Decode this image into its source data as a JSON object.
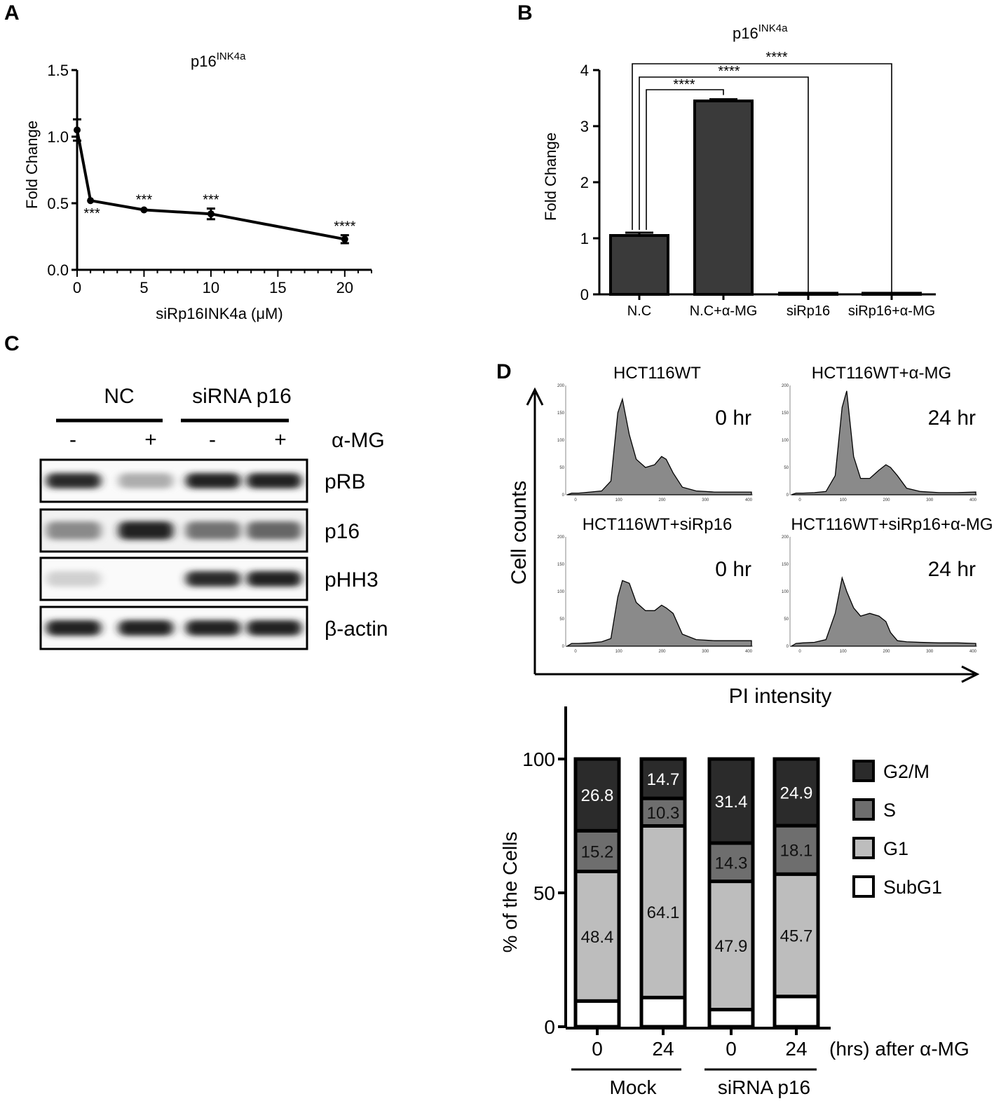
{
  "panels": {
    "A": "A",
    "B": "B",
    "C": "C",
    "D": "D"
  },
  "panel_a": {
    "title_main": "p16",
    "title_sup": "INK4a",
    "ylabel": "Fold Change",
    "xlabel": "siRp16INK4a (μM)",
    "yticks": [
      "0.0",
      "0.5",
      "1.0",
      "1.5"
    ],
    "xticks": [
      "0",
      "5",
      "10",
      "15",
      "20"
    ]
  },
  "panel_b": {
    "title_main": "p16",
    "title_sup": "INK4a",
    "ylabel": "Fold Change",
    "yticks": [
      "0",
      "1",
      "2",
      "3",
      "4"
    ]
  },
  "panel_c": {
    "groups": [
      "NC",
      "siRNA p16"
    ],
    "treatment_label": "α-MG",
    "lane_signs": [
      "-",
      "+",
      "-",
      "+"
    ],
    "blots": [
      {
        "name": "pRB",
        "intensity": [
          0.9,
          0.35,
          0.95,
          0.95
        ]
      },
      {
        "name": "p16",
        "intensity": [
          0.5,
          0.95,
          0.6,
          0.65
        ]
      },
      {
        "name": "pHH3",
        "intensity": [
          0.2,
          0.0,
          0.9,
          0.95
        ]
      },
      {
        "name": "β-actin",
        "intensity": [
          0.95,
          0.95,
          0.95,
          0.95
        ]
      }
    ]
  },
  "panel_d": {
    "ylabel": "Cell counts",
    "xlabel": "PI intensity",
    "histograms": [
      {
        "title": "HCT116WT",
        "time": "0 hr"
      },
      {
        "title": "HCT116WT+α-MG",
        "time": "24 hr"
      },
      {
        "title": "HCT116WT+siRp16",
        "time": "0 hr"
      },
      {
        "title": "HCT116WT+siRp16+α-MG",
        "time": "24 hr"
      }
    ],
    "hist_yticks": [
      "0",
      "50",
      "100",
      "150",
      "200"
    ],
    "hist_xticks": [
      "0",
      "100",
      "200",
      "300",
      "400"
    ],
    "stack_ylabel": "% of the Cells",
    "stack_xlabel_suffix": "(hrs) after α-MG",
    "group_labels": [
      "Mock",
      "siRNA p16"
    ]
  },
  "chart_data": [
    {
      "type": "line",
      "panel": "A",
      "title": "p16INK4a",
      "xlabel": "siRp16INK4a (μM)",
      "ylabel": "Fold Change",
      "xlim": [
        0,
        22
      ],
      "ylim": [
        0,
        1.5
      ],
      "x": [
        0,
        1,
        5,
        10,
        20
      ],
      "y": [
        1.05,
        0.52,
        0.45,
        0.42,
        0.23
      ],
      "error": [
        0.08,
        0.01,
        0.01,
        0.04,
        0.03
      ],
      "annotations": [
        "",
        "***",
        "***",
        "***",
        "****"
      ]
    },
    {
      "type": "bar",
      "panel": "B",
      "title": "p16INK4a",
      "ylabel": "Fold Change",
      "ylim": [
        0,
        4
      ],
      "categories": [
        "N.C",
        "N.C+α-MG",
        "siRp16",
        "siRp16+α-MG"
      ],
      "values": [
        1.05,
        3.45,
        0.02,
        0.02
      ],
      "error": [
        0.05,
        0.03,
        0.0,
        0.0
      ],
      "significance": [
        {
          "from": "N.C",
          "to": "N.C+α-MG",
          "label": "****"
        },
        {
          "from": "N.C",
          "to": "siRp16",
          "label": "****"
        },
        {
          "from": "N.C",
          "to": "siRp16+α-MG",
          "label": "****"
        }
      ]
    },
    {
      "type": "area",
      "panel": "D",
      "xlim": [
        0,
        400
      ],
      "ylim": [
        0,
        200
      ],
      "x": [
        0,
        10,
        25,
        50,
        75,
        95,
        110,
        120,
        135,
        150,
        170,
        190,
        205,
        215,
        230,
        250,
        280,
        320,
        360,
        400
      ],
      "series": [
        {
          "values": [
            0,
            3,
            3,
            5,
            7,
            25,
            150,
            175,
            110,
            65,
            50,
            55,
            70,
            65,
            40,
            14,
            7,
            5,
            5,
            5
          ]
        },
        {
          "values": [
            0,
            3,
            3,
            4,
            6,
            35,
            160,
            190,
            70,
            30,
            30,
            45,
            55,
            50,
            35,
            12,
            6,
            4,
            4,
            5
          ]
        },
        {
          "values": [
            0,
            5,
            5,
            6,
            8,
            14,
            90,
            120,
            115,
            80,
            65,
            65,
            75,
            70,
            60,
            22,
            12,
            10,
            10,
            10
          ]
        },
        {
          "values": [
            0,
            5,
            6,
            7,
            12,
            60,
            125,
            100,
            70,
            55,
            60,
            55,
            45,
            25,
            10,
            8,
            7,
            6,
            6,
            5
          ]
        }
      ]
    },
    {
      "type": "bar",
      "panel": "D",
      "stacked": true,
      "ylabel": "% of the Cells",
      "xlabel": "(hrs) after α-MG",
      "ylim": [
        0,
        100
      ],
      "categories": [
        "0",
        "24",
        "0",
        "24"
      ],
      "series": [
        {
          "name": "SubG1",
          "values": [
            9.6,
            10.9,
            6.4,
            11.3
          ],
          "labels": [
            "",
            "",
            "",
            ""
          ],
          "color": "#ffffff"
        },
        {
          "name": "G1",
          "values": [
            48.4,
            64.1,
            47.9,
            45.7
          ],
          "labels": [
            "48.4",
            "64.1",
            "47.9",
            "45.7"
          ],
          "color": "#bdbdbd"
        },
        {
          "name": "S",
          "values": [
            15.2,
            10.3,
            14.3,
            18.1
          ],
          "labels": [
            "15.2",
            "10.3",
            "14.3",
            "18.1"
          ],
          "color": "#6e6e6e"
        },
        {
          "name": "G2/M",
          "values": [
            26.8,
            14.7,
            31.4,
            24.9
          ],
          "labels": [
            "26.8",
            "14.7",
            "31.4",
            "24.9"
          ],
          "color": "#2b2b2b"
        }
      ]
    }
  ]
}
